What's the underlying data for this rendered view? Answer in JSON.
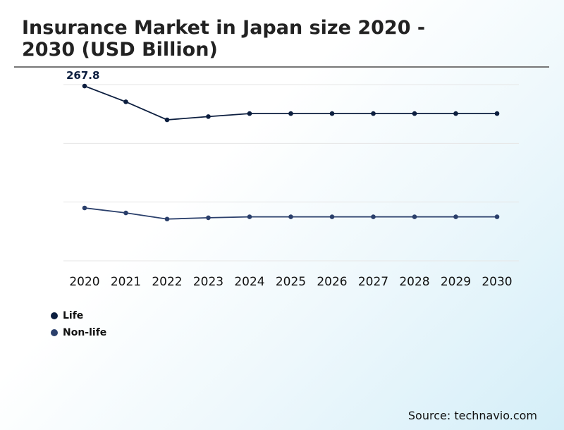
{
  "title": "Insurance Market in Japan size 2020 - 2030 (USD Billion)",
  "source": "Source: technavio.com",
  "chart_data": {
    "type": "line",
    "title": "Insurance Market in Japan size 2020 - 2030 (USD Billion)",
    "xlabel": "",
    "ylabel": "",
    "x": [
      "2020",
      "2021",
      "2022",
      "2023",
      "2024",
      "2025",
      "2026",
      "2027",
      "2028",
      "2029",
      "2030"
    ],
    "ylim": [
      0,
      270
    ],
    "grid": true,
    "legend_position": "bottom-left",
    "annotations": [
      {
        "series": "Life",
        "x": "2020",
        "text": "267.8"
      }
    ],
    "series": [
      {
        "name": "Life",
        "color": "#0c1e3f",
        "values": [
          267.8,
          243.6,
          216.0,
          221.0,
          225.6,
          225.6,
          225.6,
          225.6,
          225.6,
          225.6,
          225.6
        ]
      },
      {
        "name": "Non-life",
        "color": "#2a3f6b",
        "values": [
          81.0,
          73.4,
          64.0,
          66.0,
          67.4,
          67.4,
          67.4,
          67.4,
          67.4,
          67.4,
          67.4
        ]
      }
    ]
  }
}
